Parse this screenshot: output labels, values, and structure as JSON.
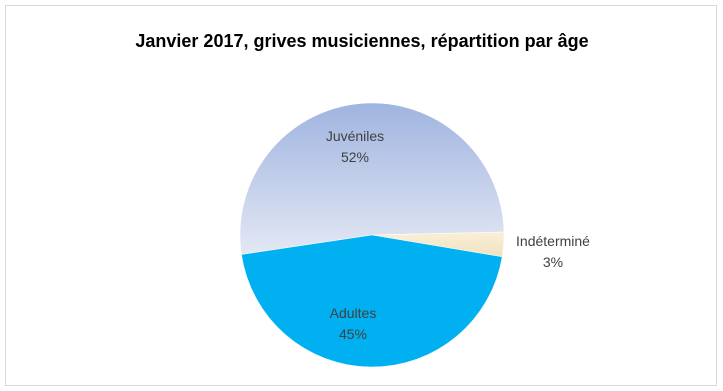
{
  "chart_data": {
    "type": "pie",
    "title": "Janvier 2017, grives musiciennes, répartition par âge",
    "slices": [
      {
        "label": "Juvéniles",
        "value": 52,
        "value_label": "52%",
        "color_top": "#9fb4df",
        "color_bottom": "#e4e8f5"
      },
      {
        "label": "Indéterminé",
        "value": 3,
        "value_label": "3%",
        "color_top": "#faf0d8",
        "color_bottom": "#f1e2bf"
      },
      {
        "label": "Adultes",
        "value": 45,
        "value_label": "45%",
        "color_top": "#00b0f0",
        "color_bottom": "#00b0f0"
      }
    ],
    "legend": "none",
    "data_labels": "category and percentage"
  }
}
